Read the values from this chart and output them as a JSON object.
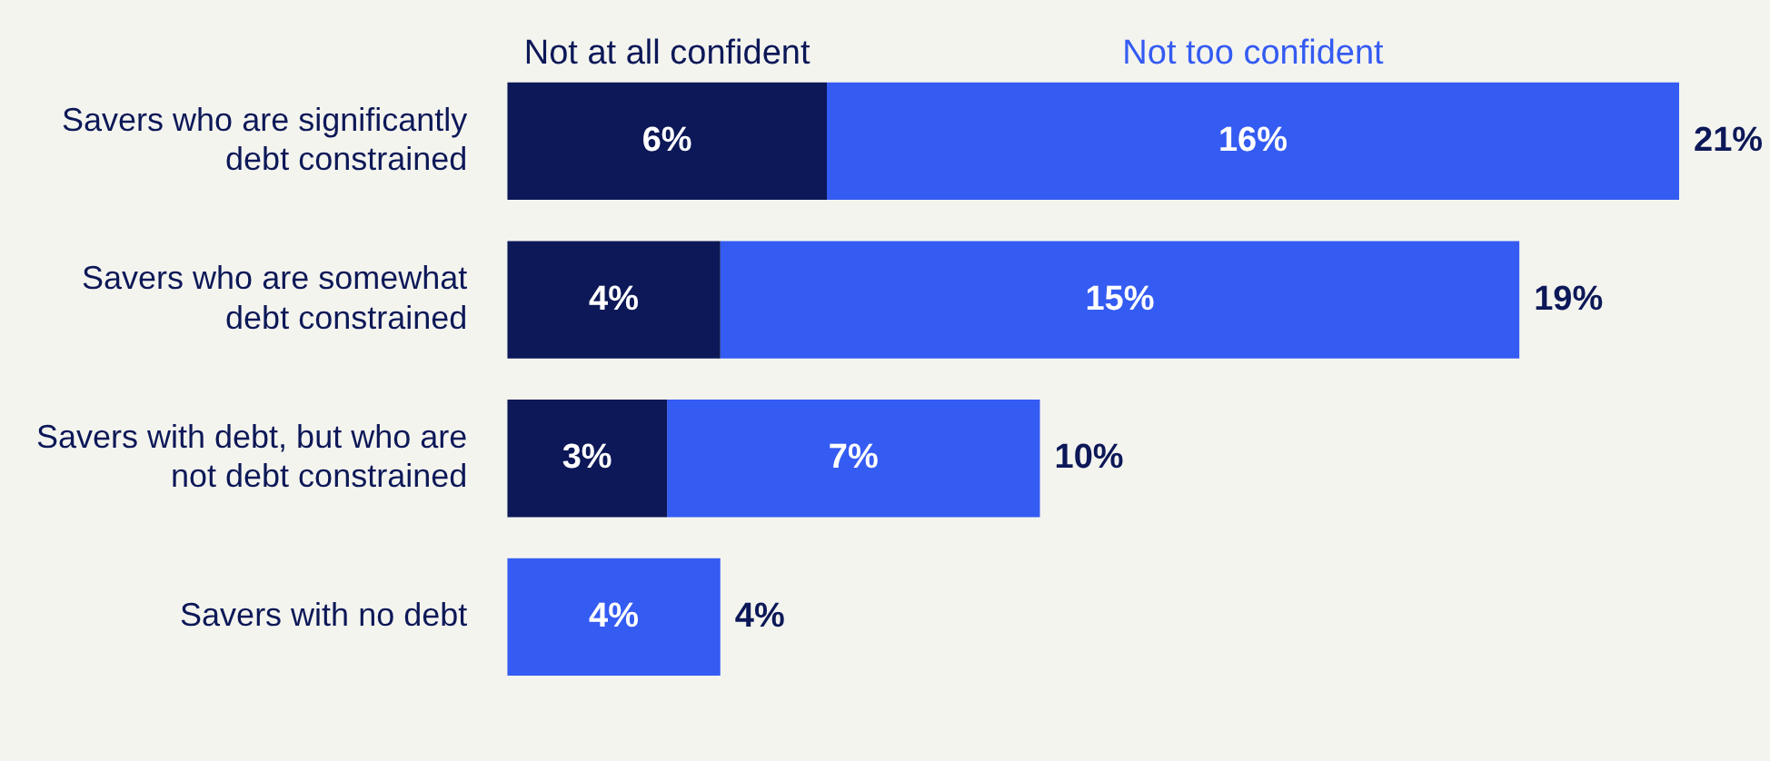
{
  "chart_data": {
    "type": "bar",
    "orientation": "horizontal",
    "stacked": true,
    "categories": [
      "Savers who are significantly debt constrained",
      "Savers who are somewhat debt constrained",
      "Savers with debt, but who are not debt constrained",
      "Savers with no debt"
    ],
    "series": [
      {
        "name": "Not at all confident",
        "color": "#0c1857",
        "values": [
          6,
          4,
          3,
          null
        ],
        "value_labels": [
          "6%",
          "4%",
          "3%",
          null
        ]
      },
      {
        "name": "Not too confident",
        "color": "#345bf2",
        "values": [
          16,
          15,
          7,
          4
        ],
        "value_labels": [
          "16%",
          "15%",
          "7%",
          "4%"
        ]
      }
    ],
    "totals": [
      "21%",
      "19%",
      "10%",
      "4%"
    ],
    "legend": "top",
    "grid": false,
    "tick_labels": "y"
  }
}
